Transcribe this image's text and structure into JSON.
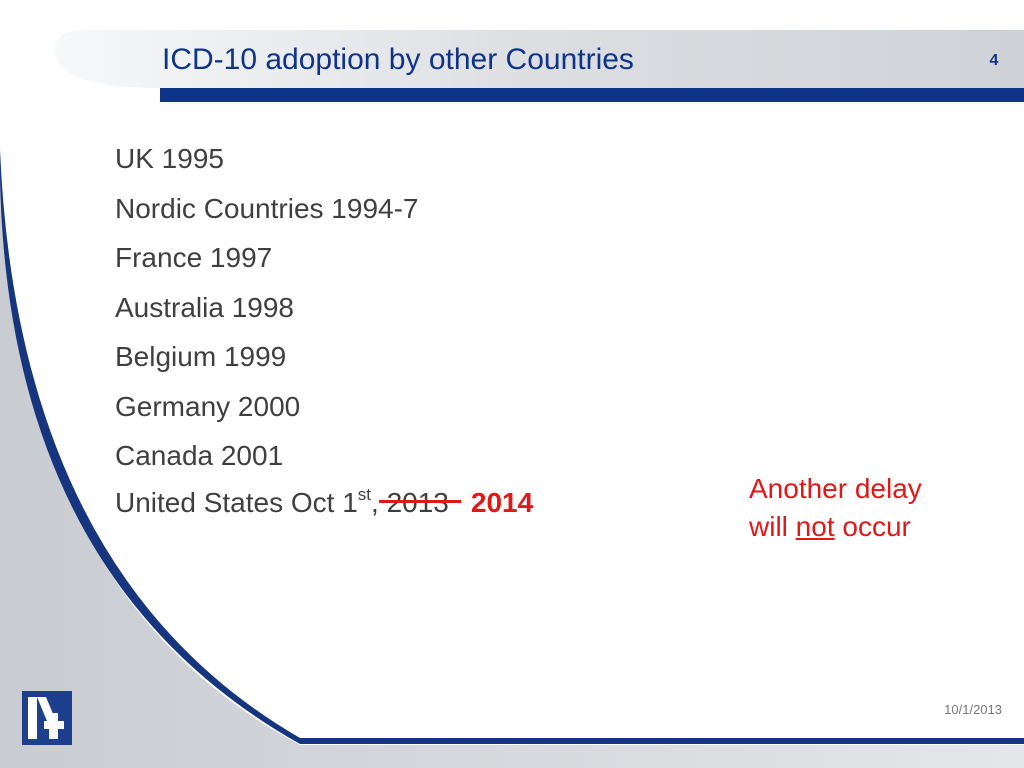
{
  "slide": {
    "title": "ICD-10 adoption by other Countries",
    "number": "4",
    "date": "10/1/2013"
  },
  "adoption_list": [
    "UK 1995",
    "Nordic Countries 1994-7",
    "France 1997",
    "Australia 1998",
    "Belgium 1999",
    "Germany 2000",
    "Canada 2001"
  ],
  "us_entry": {
    "prefix": "United States Oct 1",
    "superscript": "st",
    "comma": ",",
    "old_year": "2013",
    "new_year": "2014"
  },
  "callout": {
    "line1": "Another delay",
    "line2_start": "will ",
    "line2_emphasis": "not",
    "line2_end": " occur"
  },
  "colors": {
    "title_blue": "#0d3489",
    "body_gray": "#3f3f3f",
    "highlight_red": "#e01818",
    "band_gray": "#d5d7db",
    "logo_navy": "#1d3f8c"
  }
}
